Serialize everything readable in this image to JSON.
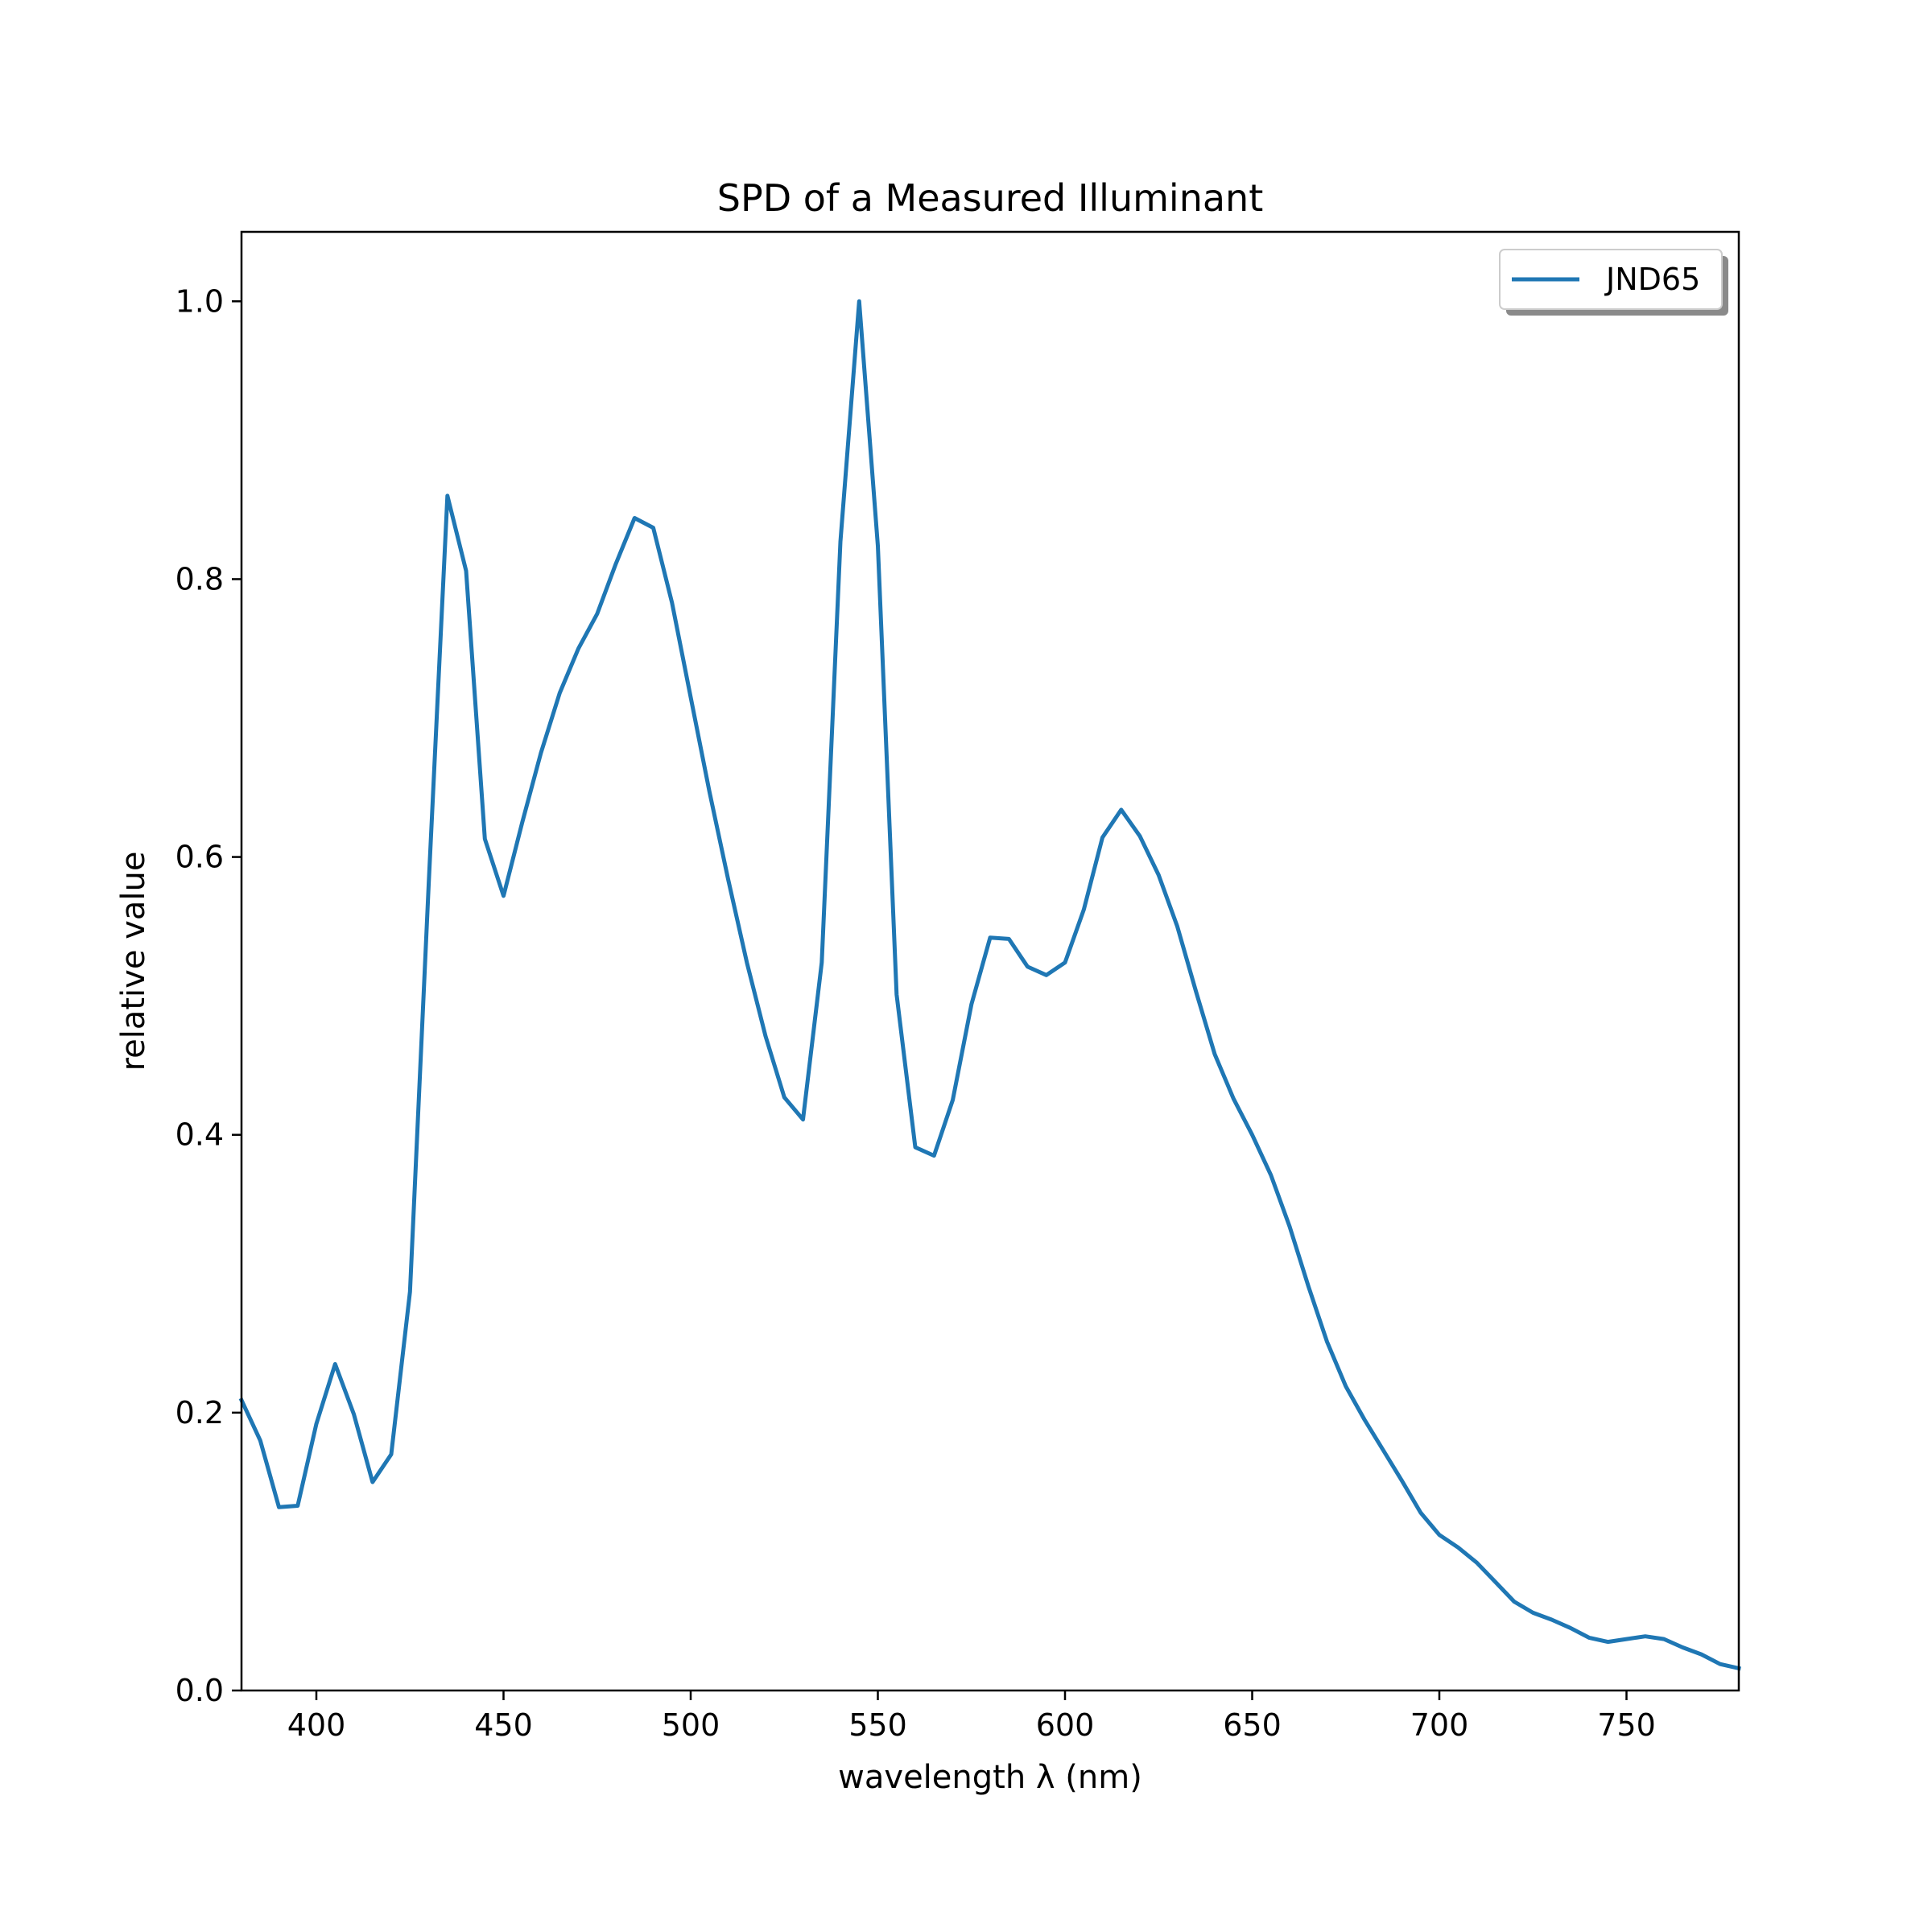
{
  "chart_data": {
    "type": "line",
    "title": "SPD of a Measured Illuminant",
    "xlabel": "wavelength λ (nm)",
    "ylabel": "relative value",
    "xlim": [
      380,
      780
    ],
    "ylim": [
      0,
      1.05
    ],
    "xticks": [
      "400",
      "450",
      "500",
      "550",
      "600",
      "650",
      "700",
      "750"
    ],
    "yticks": [
      "0.0",
      "0.2",
      "0.4",
      "0.6",
      "0.8",
      "1.0"
    ],
    "grid": false,
    "legend_position": "top-right",
    "series": [
      {
        "name": "JND65",
        "color": "#1f77b4",
        "x": [
          380,
          385,
          390,
          395,
          400,
          405,
          410,
          415,
          420,
          425,
          430,
          435,
          440,
          445,
          450,
          455,
          460,
          465,
          470,
          475,
          480,
          485,
          490,
          495,
          500,
          505,
          510,
          515,
          520,
          525,
          530,
          535,
          540,
          545,
          550,
          555,
          560,
          565,
          570,
          575,
          580,
          585,
          590,
          595,
          600,
          605,
          610,
          615,
          620,
          625,
          630,
          635,
          640,
          645,
          650,
          655,
          660,
          665,
          670,
          675,
          680,
          685,
          690,
          695,
          700,
          705,
          710,
          715,
          720,
          725,
          730,
          735,
          740,
          745,
          750,
          755,
          760,
          765,
          770,
          775,
          780
        ],
        "y": [
          0.209,
          0.18,
          0.132,
          0.133,
          0.192,
          0.235,
          0.199,
          0.15,
          0.17,
          0.287,
          0.58,
          0.86,
          0.806,
          0.613,
          0.572,
          0.625,
          0.675,
          0.718,
          0.75,
          0.775,
          0.811,
          0.844,
          0.837,
          0.783,
          0.715,
          0.647,
          0.584,
          0.524,
          0.471,
          0.427,
          0.411,
          0.524,
          0.827,
          1.0,
          0.824,
          0.501,
          0.391,
          0.385,
          0.425,
          0.494,
          0.542,
          0.541,
          0.521,
          0.515,
          0.524,
          0.562,
          0.614,
          0.634,
          0.615,
          0.587,
          0.55,
          0.503,
          0.458,
          0.426,
          0.4,
          0.371,
          0.334,
          0.291,
          0.251,
          0.219,
          0.195,
          0.173,
          0.151,
          0.128,
          0.112,
          0.103,
          0.092,
          0.078,
          0.064,
          0.056,
          0.051,
          0.045,
          0.038,
          0.035,
          0.037,
          0.039,
          0.037,
          0.031,
          0.026,
          0.019,
          0.016
        ]
      }
    ]
  }
}
